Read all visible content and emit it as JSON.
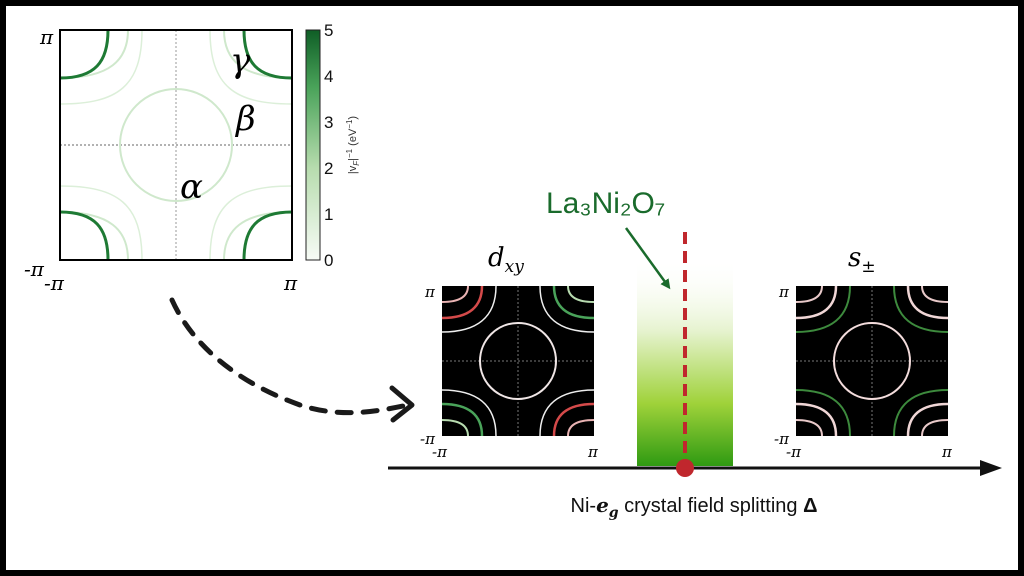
{
  "colors": {
    "background": "#ffffff",
    "border": "#000000",
    "fermi_dark": "#1e7a34",
    "fermi_light": "#cde9cb",
    "annotation_green": "#1a6b2c",
    "band_green": "#2aa81a",
    "marker_red": "#c0272d",
    "panel_black": "#000000"
  },
  "fermi_panel": {
    "tick_pi_top": "π",
    "tick_neg_pi_left": "-π",
    "tick_neg_pi_bottom": "-π",
    "tick_pi_right": "π",
    "label_gamma": "γ",
    "label_beta": "β",
    "label_alpha": "α"
  },
  "colorbar": {
    "ticks": [
      "5",
      "4",
      "3",
      "2",
      "1",
      "0"
    ],
    "label": "|v_F|^{-1} (eV^{-1})",
    "label_main": "|v",
    "label_sub": "F",
    "label_tail": "|",
    "label_sup": "−1",
    "label_units": "(eV",
    "label_units_sup": "−1",
    "label_units_close": ")",
    "min": 0,
    "max": 5
  },
  "dxy_panel": {
    "title": "d",
    "title_sub": "xy",
    "tick_pi_top": "π",
    "tick_neg_pi_left": "-π",
    "tick_neg_pi_bottom": "-π",
    "tick_pi_right": "π"
  },
  "spm_panel": {
    "title": "s",
    "title_sub": "±",
    "tick_pi_top": "π",
    "tick_neg_pi_left": "-π",
    "tick_neg_pi_bottom": "-π",
    "tick_pi_right": "π"
  },
  "material": {
    "name": "La₃Ni₂O₇"
  },
  "axis": {
    "label_prefix": "Ni-",
    "label_e": "e",
    "label_g": "g",
    "label_mid": " crystal field splitting ",
    "label_delta": "Δ"
  }
}
